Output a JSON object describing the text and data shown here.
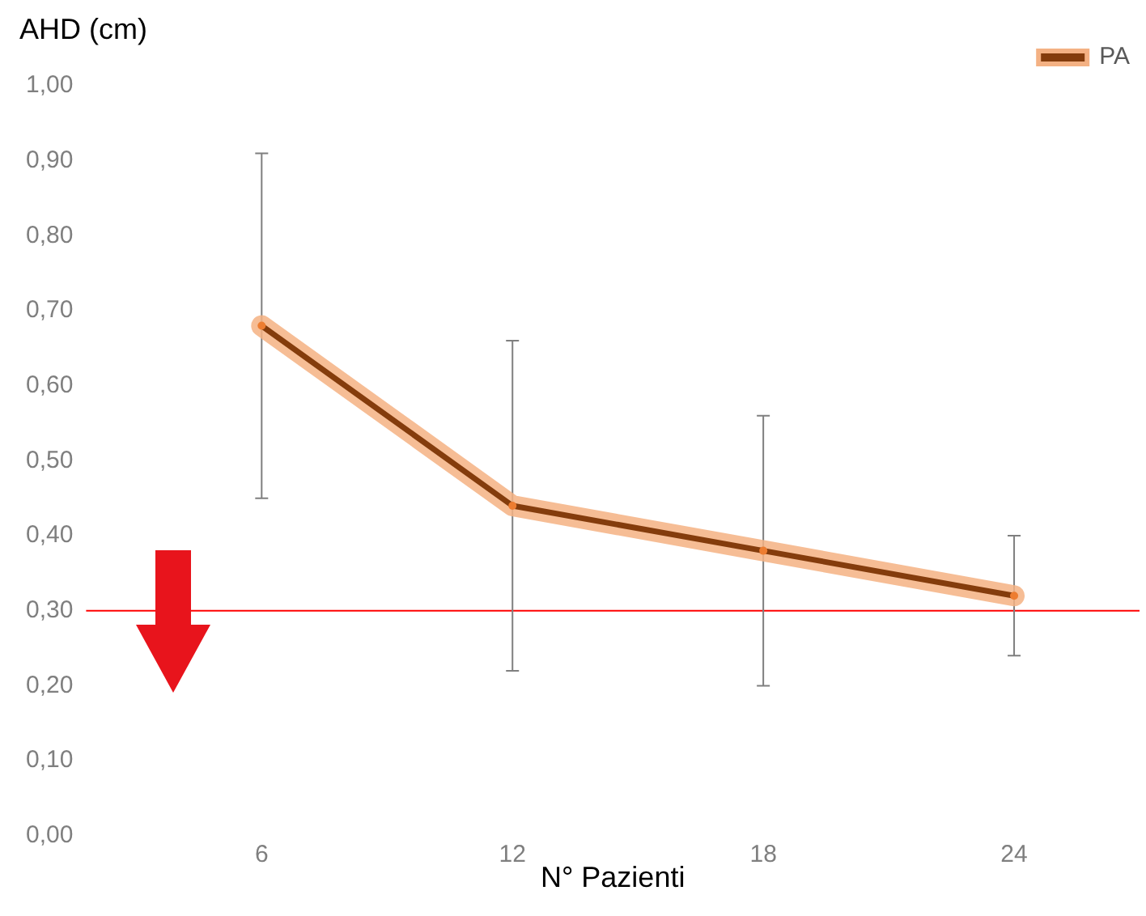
{
  "chart_data": {
    "type": "line",
    "xlabel": "N° Pazienti",
    "ylabel": "AHD (cm)",
    "x": [
      6,
      12,
      18,
      24
    ],
    "series": [
      {
        "name": "PA",
        "color": "#843c0c",
        "values": [
          0.68,
          0.44,
          0.38,
          0.32
        ],
        "errors": [
          [
            0.45,
            0.91
          ],
          [
            0.22,
            0.66
          ],
          [
            0.2,
            0.56
          ],
          [
            0.24,
            0.4
          ]
        ]
      }
    ],
    "xlim": [
      1.8,
      27
    ],
    "xticks": [
      6,
      12,
      18,
      24
    ],
    "ylim": [
      0,
      1
    ],
    "yticks": [
      {
        "value": 0,
        "label": "0,00"
      },
      {
        "value": 0.1,
        "label": "0,10"
      },
      {
        "value": 0.2,
        "label": "0,20"
      },
      {
        "value": 0.3,
        "label": "0,30"
      },
      {
        "value": 0.4,
        "label": "0,40"
      },
      {
        "value": 0.5,
        "label": "0,50"
      },
      {
        "value": 0.6,
        "label": "0,60"
      },
      {
        "value": 0.7,
        "label": "0,70"
      },
      {
        "value": 0.8,
        "label": "0,80"
      },
      {
        "value": 0.9,
        "label": "0,90"
      },
      {
        "value": 1,
        "label": "1,00"
      }
    ],
    "ref_lines": [
      {
        "axis": "y",
        "value": 0.3,
        "color": "#ff0000"
      }
    ],
    "grid": false,
    "legend": "top right",
    "marker": "circle",
    "line_style": "solid"
  }
}
